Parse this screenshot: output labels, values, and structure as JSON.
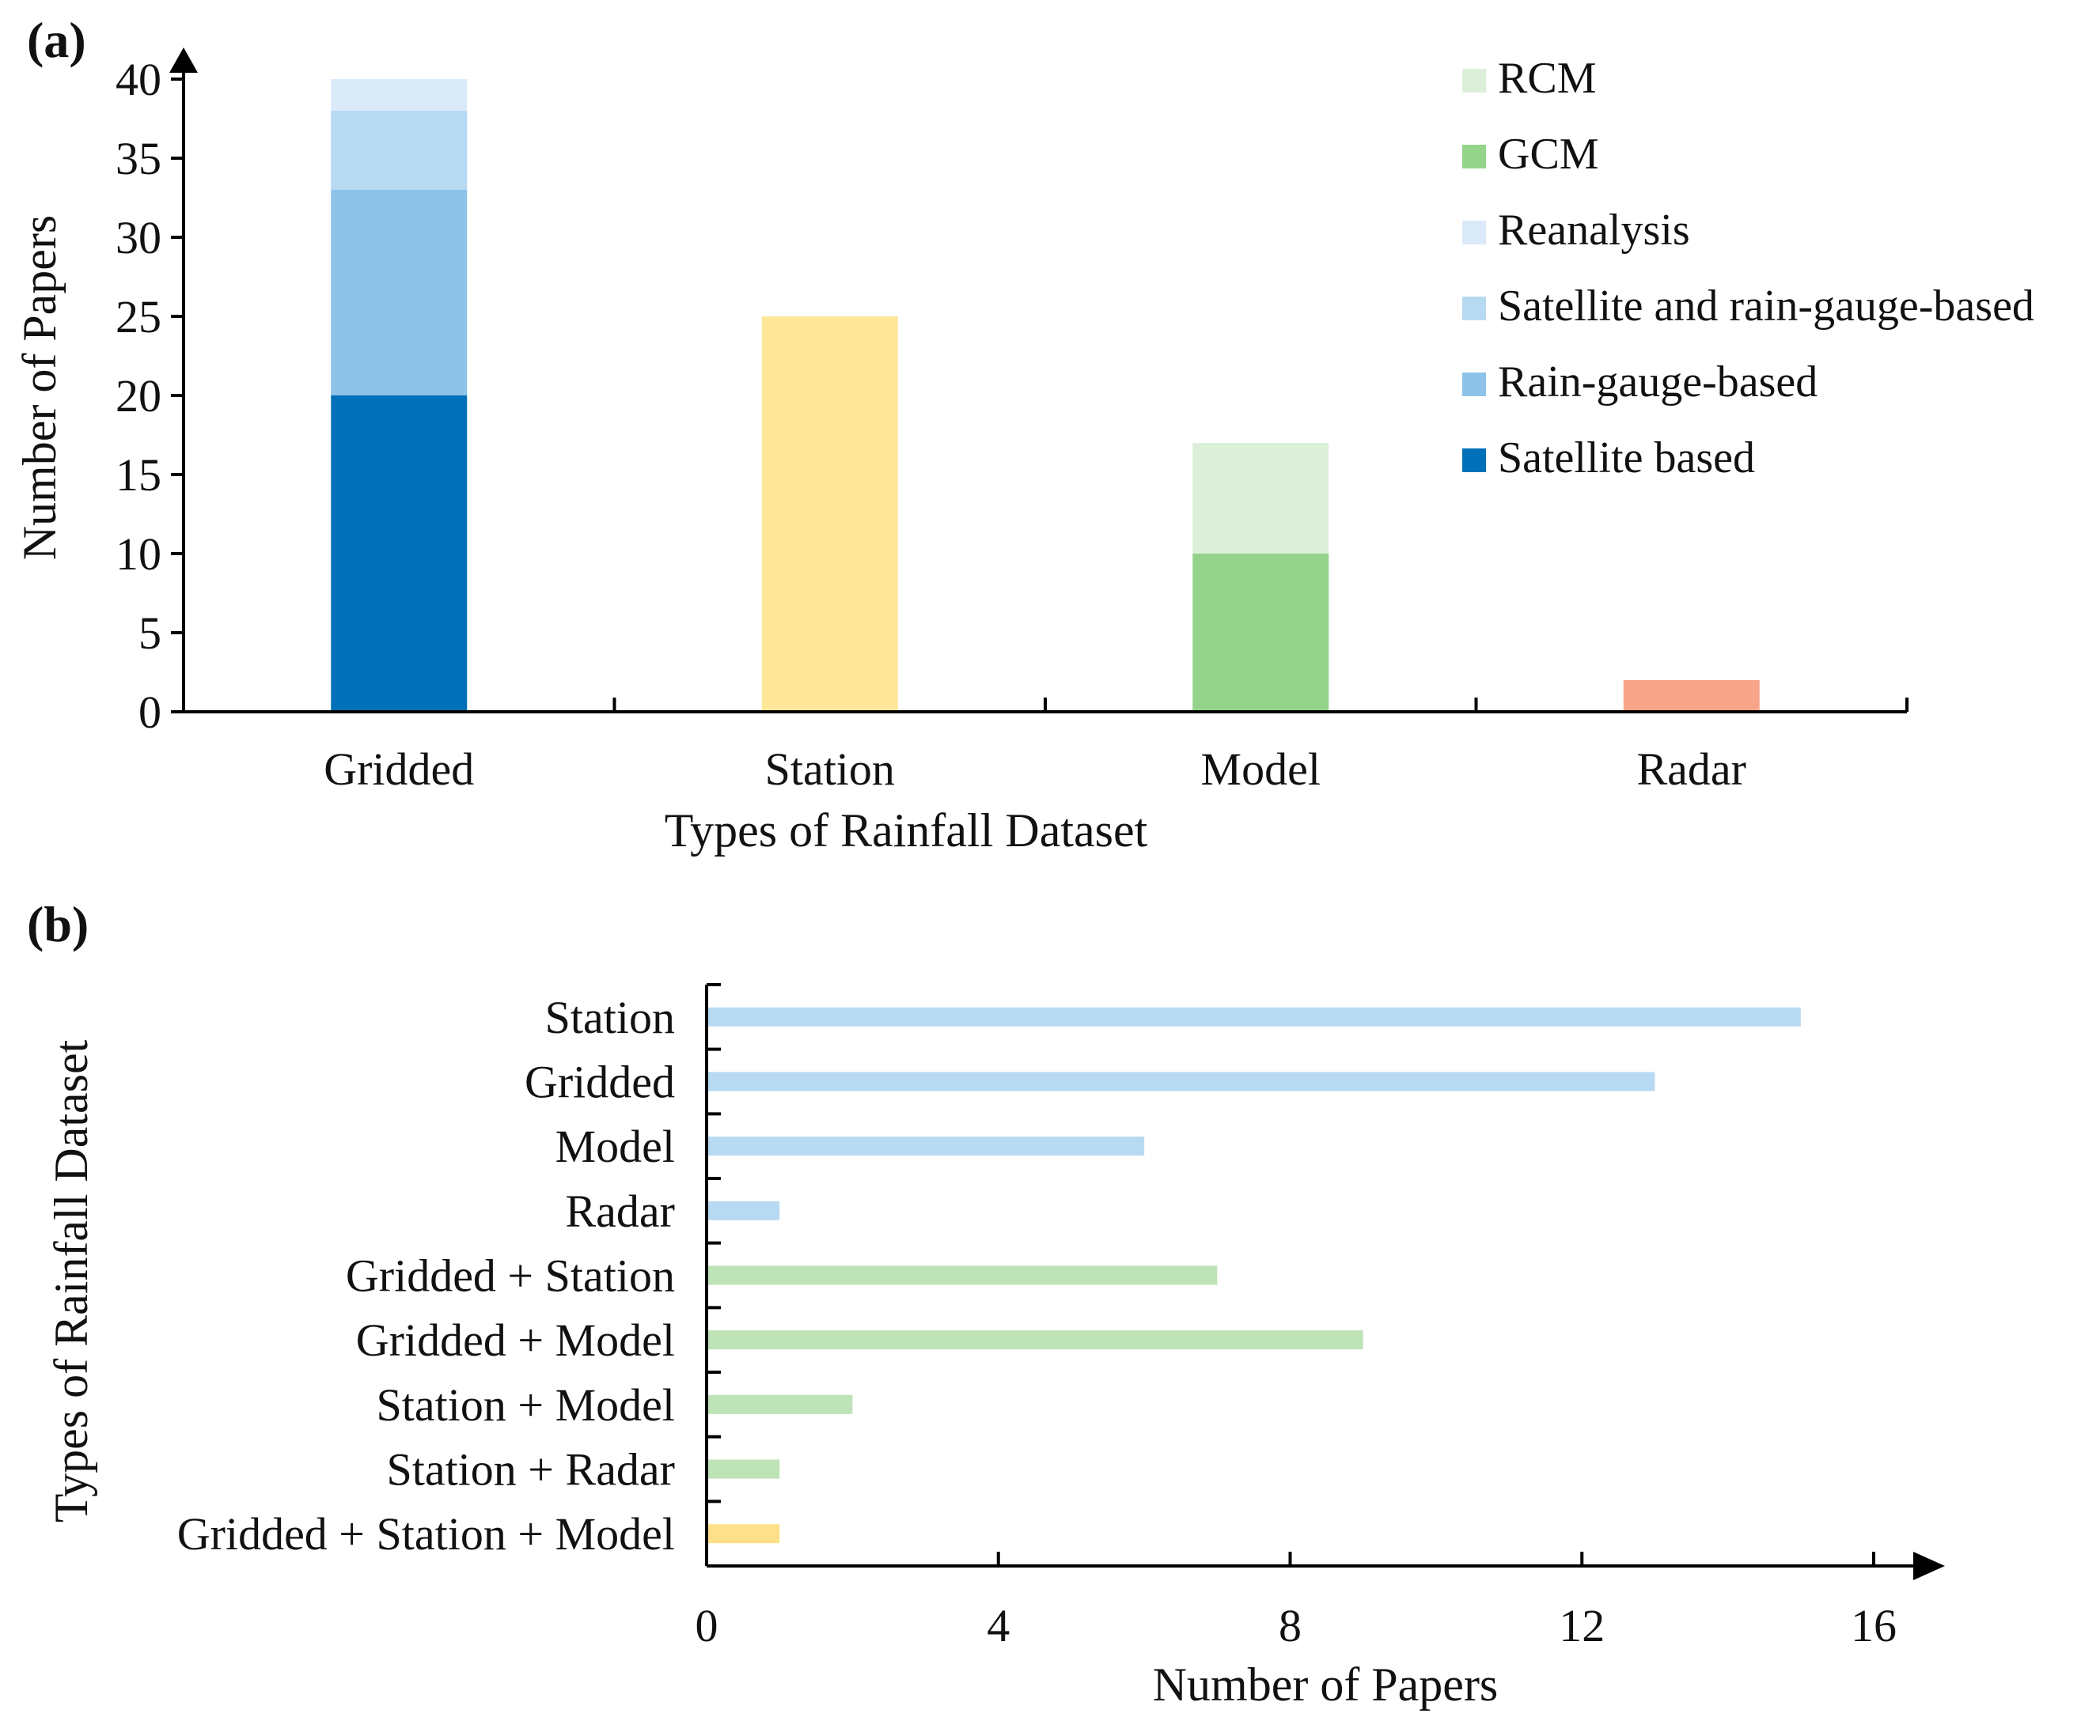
{
  "chart_data": [
    {
      "panel_label": "(a)",
      "type": "bar",
      "stacked": true,
      "title": "",
      "xlabel": "Types of Rainfall Dataset",
      "ylabel": "Number of Papers",
      "ylim": [
        0,
        40
      ],
      "yticks": [
        "0",
        "5",
        "10",
        "15",
        "20",
        "25",
        "30",
        "35",
        "40"
      ],
      "categories": [
        "Gridded",
        "Station",
        "Model",
        "Radar"
      ],
      "series": [
        {
          "name": "Satellite based",
          "color": "#0070b8",
          "values": [
            20,
            0,
            0,
            0
          ]
        },
        {
          "name": "Rain-gauge-based",
          "color": "#8dc3e9",
          "values": [
            13,
            0,
            0,
            0
          ]
        },
        {
          "name": "Satellite and rain-gauge-based",
          "color": "#b7d9f2",
          "values": [
            5,
            0,
            0,
            0
          ]
        },
        {
          "name": "Reanalysis",
          "color": "#dbeaf8",
          "values": [
            2,
            0,
            0,
            0
          ]
        },
        {
          "name": "Station",
          "color": "#ffe699",
          "values": [
            0,
            25,
            0,
            0
          ],
          "in_legend": false
        },
        {
          "name": "GCM",
          "color": "#93d38a",
          "values": [
            0,
            0,
            10,
            0
          ]
        },
        {
          "name": "RCM",
          "color": "#dcefd9",
          "values": [
            0,
            0,
            7,
            0
          ]
        },
        {
          "name": "Radar",
          "color": "#f8a488",
          "values": [
            0,
            0,
            0,
            2
          ],
          "in_legend": false
        }
      ],
      "legend": [
        "RCM",
        "GCM",
        "Reanalysis",
        "Satellite and rain-gauge-based",
        "Rain-gauge-based",
        "Satellite based"
      ],
      "legend_position": "top-right",
      "grid": false
    },
    {
      "panel_label": "(b)",
      "type": "bar",
      "orientation": "horizontal",
      "title": "",
      "xlabel": "Number of Papers",
      "ylabel": "Types of Rainfall Dataset",
      "xlim": [
        0,
        16
      ],
      "xticks": [
        "0",
        "4",
        "8",
        "12",
        "16"
      ],
      "categories": [
        "Station",
        "Gridded",
        "Model",
        "Radar",
        "Gridded + Station",
        "Gridded + Model",
        "Station + Model",
        "Station + Radar",
        "Gridded + Station + Model"
      ],
      "values": [
        15,
        13,
        6,
        1,
        7,
        9,
        2,
        1,
        1
      ],
      "colors": [
        "#b7d9f2",
        "#b7d9f2",
        "#b7d9f2",
        "#b7d9f2",
        "#bde3b6",
        "#bde3b6",
        "#bde3b6",
        "#bde3b6",
        "#ffe08a"
      ],
      "grid": false
    }
  ]
}
